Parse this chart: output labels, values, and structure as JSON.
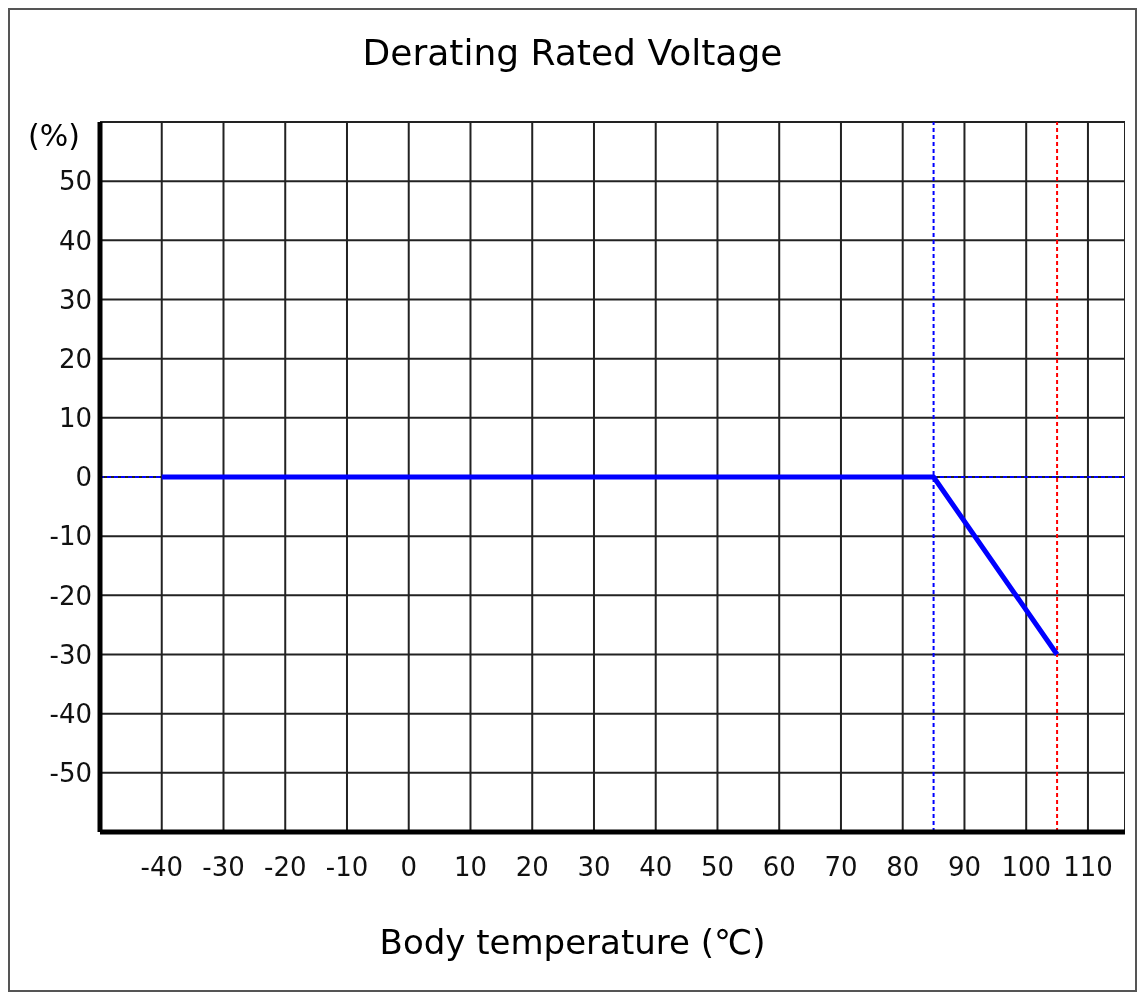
{
  "chart_data": {
    "type": "line",
    "title": "Derating Rated Voltage",
    "xlabel": "Body temperature (℃)",
    "ylabel": "(%)",
    "x": [
      -40,
      85,
      105
    ],
    "series": [
      {
        "color": "#0000ff",
        "values": [
          0,
          0,
          -30
        ]
      }
    ],
    "xlim": [
      -50,
      116
    ],
    "ylim": [
      -60,
      60
    ],
    "xticks": [
      -40,
      -30,
      -20,
      -10,
      0,
      10,
      20,
      30,
      40,
      50,
      60,
      70,
      80,
      90,
      100,
      110
    ],
    "yticks": [
      -50,
      -40,
      -30,
      -20,
      -10,
      0,
      10,
      20,
      30,
      40,
      50
    ],
    "grid": true,
    "marker": "none",
    "line_style": "solid",
    "ref_lines": [
      {
        "axis": "x",
        "value": 85,
        "color": "#0000ff",
        "line_style": "dashed"
      },
      {
        "axis": "x",
        "value": 105,
        "color": "#ff0000",
        "line_style": "dashed"
      },
      {
        "axis": "y",
        "value": 0,
        "color": "#0000ff",
        "line_style": "dashed"
      }
    ]
  }
}
